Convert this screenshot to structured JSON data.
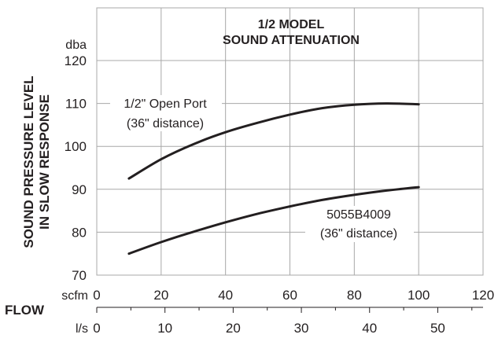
{
  "chart_data": {
    "type": "line",
    "title_line1": "1/2 MODEL",
    "title_line2": "SOUND ATTENUATION",
    "ylabel_line1": "SOUND PRESSURE LEVEL",
    "ylabel_line2": "IN SLOW RESPONSE",
    "yunit": "dba",
    "ylim": [
      70,
      120
    ],
    "yticks": [
      70,
      80,
      90,
      100,
      110,
      120
    ],
    "xlabel": "FLOW",
    "xunit": "scfm",
    "xlim": [
      0,
      120
    ],
    "xticks": [
      0,
      20,
      40,
      60,
      80,
      100,
      120
    ],
    "x2unit": "l/s",
    "x2ticks": [
      0,
      10,
      20,
      30,
      40,
      50
    ],
    "grid": true,
    "series": [
      {
        "name_line1": "1/2\" Open Port",
        "name_line2": "(36\" distance)",
        "x": [
          10,
          20,
          30,
          40,
          50,
          60,
          70,
          80,
          90,
          100
        ],
        "y": [
          92.5,
          97,
          100.5,
          103.3,
          105.5,
          107.4,
          108.9,
          109.7,
          110,
          109.8
        ]
      },
      {
        "name_line1": "5055B4009",
        "name_line2": "(36\" distance)",
        "x": [
          10,
          20,
          30,
          40,
          50,
          60,
          70,
          80,
          90,
          100
        ],
        "y": [
          75,
          77.7,
          80.1,
          82.3,
          84.3,
          86,
          87.5,
          88.7,
          89.7,
          90.5
        ]
      }
    ]
  }
}
